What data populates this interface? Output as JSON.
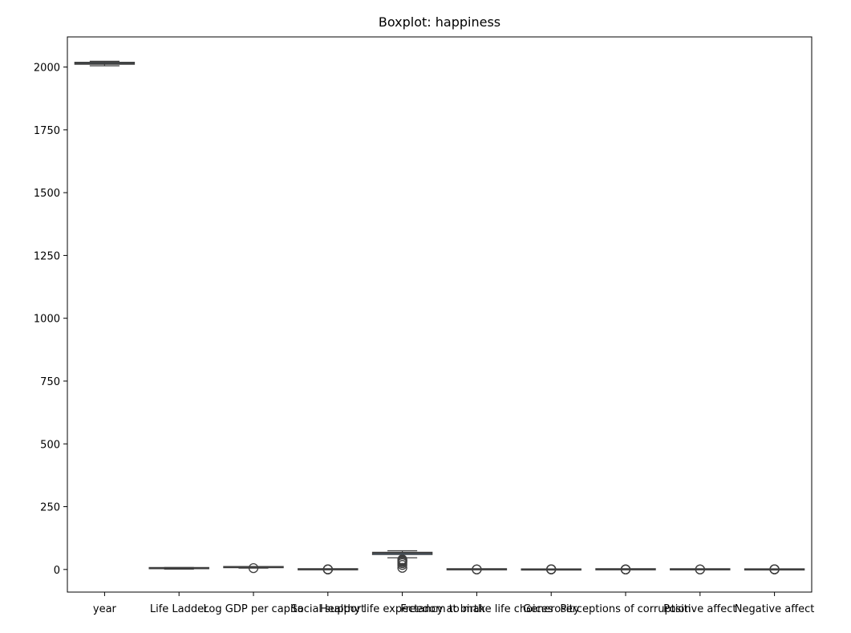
{
  "chart_data": {
    "type": "box",
    "title": "Boxplot: happiness",
    "xlabel": "",
    "ylabel": "",
    "ylim": [
      -90,
      2120
    ],
    "yticks": [
      0,
      250,
      500,
      750,
      1000,
      1250,
      1500,
      1750,
      2000
    ],
    "grid": false,
    "categories": [
      "year",
      "Life Ladder",
      "Log GDP per capita",
      "Social support",
      "Healthy life expectancy at birth",
      "Freedom to make life choices",
      "Generosity",
      "Perceptions of corruption",
      "Positive affect",
      "Negative affect"
    ],
    "series": [
      {
        "category": "year",
        "q1": 2011,
        "median": 2015,
        "q3": 2019,
        "whisker_low": 2005,
        "whisker_high": 2023,
        "outliers": []
      },
      {
        "category": "Life Ladder",
        "q1": 4.6,
        "median": 5.4,
        "q3": 6.2,
        "whisker_low": 1.3,
        "whisker_high": 8.0,
        "outliers": []
      },
      {
        "category": "Log GDP per capita",
        "q1": 8.5,
        "median": 9.5,
        "q3": 10.4,
        "whisker_low": 5.5,
        "whisker_high": 11.7,
        "outliers": [
          5.5
        ]
      },
      {
        "category": "Social support",
        "q1": 0.74,
        "median": 0.83,
        "q3": 0.9,
        "whisker_low": 0.5,
        "whisker_high": 0.99,
        "outliers": [
          0.29,
          0.35,
          0.4,
          0.45
        ]
      },
      {
        "category": "Healthy life expectancy at birth",
        "q1": 59.5,
        "median": 65.0,
        "q3": 68.5,
        "whisker_low": 46.5,
        "whisker_high": 74.5,
        "outliers": [
          6.7,
          18.0,
          25.0,
          30.0,
          33.0,
          35.0,
          38.0,
          40.0
        ]
      },
      {
        "category": "Freedom to make life choices",
        "q1": 0.66,
        "median": 0.77,
        "q3": 0.86,
        "whisker_low": 0.36,
        "whisker_high": 0.99,
        "outliers": [
          0.23,
          0.3
        ]
      },
      {
        "category": "Generosity",
        "q1": -0.11,
        "median": -0.02,
        "q3": 0.09,
        "whisker_low": -0.34,
        "whisker_high": 0.39,
        "outliers": [
          0.45,
          0.55,
          0.62,
          0.7
        ]
      },
      {
        "category": "Perceptions of corruption",
        "q1": 0.69,
        "median": 0.8,
        "q3": 0.87,
        "whisker_low": 0.42,
        "whisker_high": 0.98,
        "outliers": [
          0.03,
          0.1,
          0.2,
          0.3
        ]
      },
      {
        "category": "Positive affect",
        "q1": 0.57,
        "median": 0.66,
        "q3": 0.74,
        "whisker_low": 0.33,
        "whisker_high": 0.88,
        "outliers": [
          0.18,
          0.25
        ]
      },
      {
        "category": "Negative affect",
        "q1": 0.21,
        "median": 0.26,
        "q3": 0.32,
        "whisker_low": 0.08,
        "whisker_high": 0.48,
        "outliers": [
          0.55,
          0.6,
          0.65,
          0.7
        ]
      }
    ]
  }
}
